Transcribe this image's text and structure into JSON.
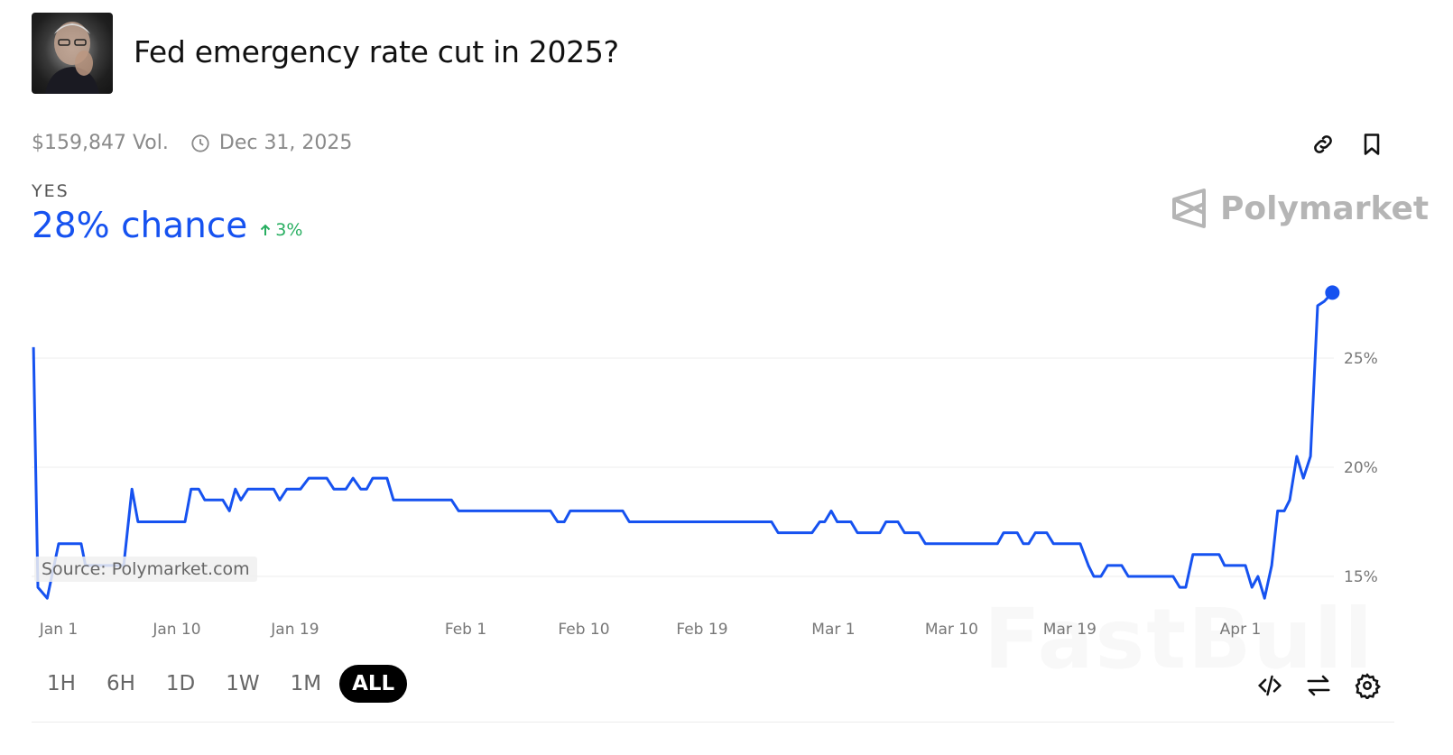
{
  "market": {
    "title": "Fed emergency rate cut in 2025?",
    "volume": "$159,847 Vol.",
    "end_date": "Dec 31, 2025",
    "outcome_label": "YES",
    "chance": "28% chance",
    "change": "3%",
    "change_direction": "up",
    "image": "portrait-photo"
  },
  "brand": {
    "name": "Polymarket",
    "logo": "polymarket-logo"
  },
  "source_note": "Source: Polymarket.com",
  "watermark": "FastBull",
  "icons": {
    "link": "link-icon",
    "bookmark": "bookmark-icon",
    "clock": "clock-icon",
    "embed": "code-icon",
    "swap": "swap-arrows-icon",
    "settings": "gear-icon"
  },
  "timeframes": [
    {
      "label": "1H",
      "active": false
    },
    {
      "label": "6H",
      "active": false
    },
    {
      "label": "1D",
      "active": false
    },
    {
      "label": "1W",
      "active": false
    },
    {
      "label": "1M",
      "active": false
    },
    {
      "label": "ALL",
      "active": true
    }
  ],
  "colors": {
    "accent": "#1652f0",
    "positive": "#27ae60",
    "grid": "#eeeeee"
  },
  "chart_data": {
    "type": "line",
    "title": "",
    "xlabel": "",
    "ylabel": "",
    "x_ticks": [
      {
        "label": "Jan 1",
        "date": "2025-01-01"
      },
      {
        "label": "Jan 10",
        "date": "2025-01-10"
      },
      {
        "label": "Jan 19",
        "date": "2025-01-19"
      },
      {
        "label": "Feb 1",
        "date": "2025-02-01"
      },
      {
        "label": "Feb 10",
        "date": "2025-02-10"
      },
      {
        "label": "Feb 19",
        "date": "2025-02-19"
      },
      {
        "label": "Mar 1",
        "date": "2025-03-01"
      },
      {
        "label": "Mar 10",
        "date": "2025-03-10"
      },
      {
        "label": "Mar 19",
        "date": "2025-03-19"
      },
      {
        "label": "Apr 1",
        "date": "2025-04-01"
      }
    ],
    "y_ticks": [
      {
        "label": "15%",
        "value": 15
      },
      {
        "label": "20%",
        "value": 20
      },
      {
        "label": "25%",
        "value": 25
      }
    ],
    "grid": true,
    "series": [
      {
        "color": "#1652f0",
        "points": [
          [
            "2024-12-30T02",
            25.5
          ],
          [
            "2024-12-30T10",
            14.5
          ],
          [
            "2024-12-31T03",
            14.0
          ],
          [
            "2025-01-01T00",
            16.5
          ],
          [
            "2025-01-02T17",
            16.5
          ],
          [
            "2025-01-03T01",
            15.5
          ],
          [
            "2025-01-05T23",
            15.5
          ],
          [
            "2025-01-06T14",
            19.0
          ],
          [
            "2025-01-07T01",
            17.5
          ],
          [
            "2025-01-10T15",
            17.5
          ],
          [
            "2025-01-11T02",
            19.0
          ],
          [
            "2025-01-11T16",
            19.0
          ],
          [
            "2025-01-12T03",
            18.5
          ],
          [
            "2025-01-13T12",
            18.5
          ],
          [
            "2025-01-14T00",
            18.0
          ],
          [
            "2025-01-14T11",
            19.0
          ],
          [
            "2025-01-14T21",
            18.5
          ],
          [
            "2025-01-15T10",
            19.0
          ],
          [
            "2025-01-17T09",
            19.0
          ],
          [
            "2025-01-17T20",
            18.5
          ],
          [
            "2025-01-18T09",
            19.0
          ],
          [
            "2025-01-19T10",
            19.0
          ],
          [
            "2025-01-20T01",
            19.5
          ],
          [
            "2025-01-21T10",
            19.5
          ],
          [
            "2025-01-21T23",
            19.0
          ],
          [
            "2025-01-22T21",
            19.0
          ],
          [
            "2025-01-23T10",
            19.5
          ],
          [
            "2025-01-24T00",
            19.0
          ],
          [
            "2025-01-24T11",
            19.0
          ],
          [
            "2025-01-24T22",
            19.5
          ],
          [
            "2025-01-26T00",
            19.5
          ],
          [
            "2025-01-26T12",
            18.5
          ],
          [
            "2025-01-30T22",
            18.5
          ],
          [
            "2025-01-31T11",
            18.0
          ],
          [
            "2025-02-07T11",
            18.0
          ],
          [
            "2025-02-08T00",
            17.5
          ],
          [
            "2025-02-08T12",
            17.5
          ],
          [
            "2025-02-08T23",
            18.0
          ],
          [
            "2025-02-12T23",
            18.0
          ],
          [
            "2025-02-13T11",
            17.5
          ],
          [
            "2025-02-24T07",
            17.5
          ],
          [
            "2025-02-24T19",
            17.0
          ],
          [
            "2025-02-27T09",
            17.0
          ],
          [
            "2025-02-27T23",
            17.5
          ],
          [
            "2025-02-28T08",
            17.5
          ],
          [
            "2025-02-28T20",
            18.0
          ],
          [
            "2025-03-01T07",
            17.5
          ],
          [
            "2025-03-02T08",
            17.5
          ],
          [
            "2025-03-02T20",
            17.0
          ],
          [
            "2025-03-04T13",
            17.0
          ],
          [
            "2025-03-05T00",
            17.5
          ],
          [
            "2025-03-05T22",
            17.5
          ],
          [
            "2025-03-06T10",
            17.0
          ],
          [
            "2025-03-07T12",
            17.0
          ],
          [
            "2025-03-08T00",
            16.5
          ],
          [
            "2025-03-13T12",
            16.5
          ],
          [
            "2025-03-13T23",
            17.0
          ],
          [
            "2025-03-15T00",
            17.0
          ],
          [
            "2025-03-15T11",
            16.5
          ],
          [
            "2025-03-15T21",
            16.5
          ],
          [
            "2025-03-16T09",
            17.0
          ],
          [
            "2025-03-17T06",
            17.0
          ],
          [
            "2025-03-17T18",
            16.5
          ],
          [
            "2025-03-19T19",
            16.5
          ],
          [
            "2025-03-20T10",
            15.5
          ],
          [
            "2025-03-20T20",
            15.0
          ],
          [
            "2025-03-21T09",
            15.0
          ],
          [
            "2025-03-21T21",
            15.5
          ],
          [
            "2025-03-22T23",
            15.5
          ],
          [
            "2025-03-23T11",
            15.0
          ],
          [
            "2025-03-26T21",
            15.0
          ],
          [
            "2025-03-27T09",
            14.5
          ],
          [
            "2025-03-27T20",
            14.5
          ],
          [
            "2025-03-28T09",
            16.0
          ],
          [
            "2025-03-30T09",
            16.0
          ],
          [
            "2025-03-30T19",
            15.5
          ],
          [
            "2025-04-01T09",
            15.5
          ],
          [
            "2025-04-01T21",
            14.5
          ],
          [
            "2025-04-02T08",
            15.0
          ],
          [
            "2025-04-02T20",
            14.0
          ],
          [
            "2025-04-03T09",
            15.5
          ],
          [
            "2025-04-03T20",
            18.0
          ],
          [
            "2025-04-04T08",
            18.0
          ],
          [
            "2025-04-04T18",
            18.5
          ],
          [
            "2025-04-05T07",
            20.5
          ],
          [
            "2025-04-05T19",
            19.5
          ],
          [
            "2025-04-06T08",
            20.5
          ],
          [
            "2025-04-06T21",
            27.4
          ],
          [
            "2025-04-07T09",
            27.6
          ],
          [
            "2025-04-08T00",
            28.0
          ]
        ]
      }
    ]
  }
}
